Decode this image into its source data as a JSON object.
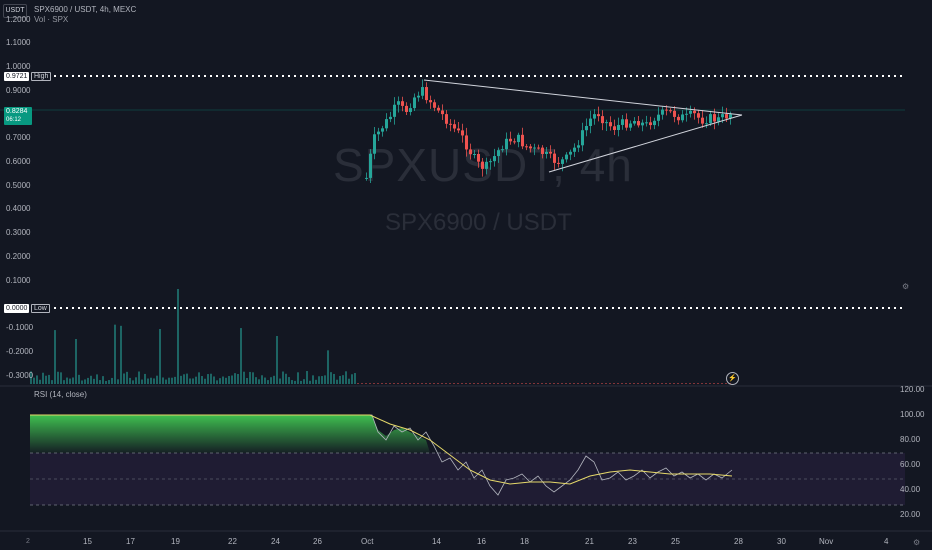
{
  "header": {
    "currency": "USDT",
    "symbol_line": "SPX6900 / USDT, 4h, MEXC",
    "volume_line": "Vol · SPX"
  },
  "watermark": {
    "main": "SPXUSDT, 4h",
    "sub": "SPX6900 / USDT"
  },
  "price_axis": {
    "ticks": [
      "1.2000",
      "1.1000",
      "1.0000",
      "0.9000",
      "0.8000",
      "0.7000",
      "0.6000",
      "0.5000",
      "0.4000",
      "0.3000",
      "0.2000",
      "0.1000",
      "-0.1000",
      "-0.2000",
      "-0.3000"
    ],
    "high_value": "0.9721",
    "high_label": "High",
    "current_value": "0.8284",
    "current_countdown": "06:12",
    "low_value": "0.0000",
    "low_label": "Low"
  },
  "rsi": {
    "title": "RSI (14, close)",
    "axis_ticks": [
      "120.00",
      "100.00",
      "80.00",
      "60.00",
      "40.00",
      "20.00"
    ]
  },
  "time_axis": {
    "ticks": [
      "15",
      "17",
      "19",
      "22",
      "24",
      "26",
      "Oct",
      "14",
      "16",
      "18",
      "21",
      "23",
      "25",
      "28",
      "30",
      "Nov",
      "4"
    ]
  },
  "colors": {
    "background": "#131722",
    "up": "#26a69a",
    "down": "#ef5350",
    "rsi_line": "#b2b5be",
    "rsi_ma": "#e6d96a",
    "rsi_band": "#1f1c33",
    "current_price": "#089981"
  },
  "icons": {
    "settings": "gear-icon",
    "event": "flash-icon",
    "goto_realtime": "chevron-icon"
  }
}
